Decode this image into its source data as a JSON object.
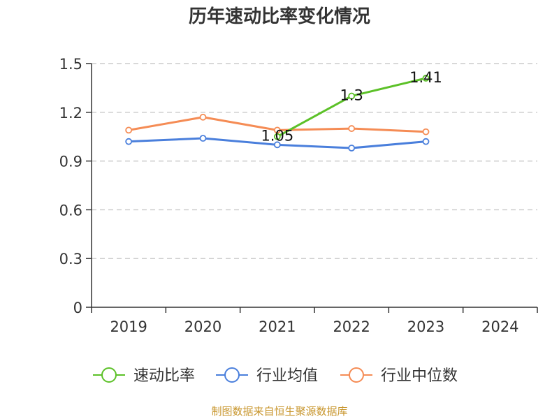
{
  "chart_data": {
    "type": "line",
    "title": "历年速动比率变化情况",
    "categories": [
      "2019",
      "2020",
      "2021",
      "2022",
      "2023",
      "2024"
    ],
    "ylim": [
      0,
      1.5
    ],
    "yticks": [
      "0",
      "0.3",
      "0.6",
      "0.9",
      "1.2",
      "1.5"
    ],
    "grid": "horizontal-dashed",
    "legend_position": "bottom",
    "series": [
      {
        "name": "速动比率",
        "color": "#5cc128",
        "values": [
          null,
          null,
          1.05,
          1.3,
          1.41,
          null
        ],
        "labels": [
          null,
          null,
          "1.05",
          "1.3",
          "1.41",
          null
        ]
      },
      {
        "name": "行业均值",
        "color": "#4a7fdc",
        "values": [
          1.02,
          1.04,
          1.0,
          0.98,
          1.02,
          null
        ]
      },
      {
        "name": "行业中位数",
        "color": "#f58c55",
        "values": [
          1.09,
          1.17,
          1.09,
          1.1,
          1.08,
          null
        ]
      }
    ]
  },
  "source": "制图数据来自恒生聚源数据库"
}
